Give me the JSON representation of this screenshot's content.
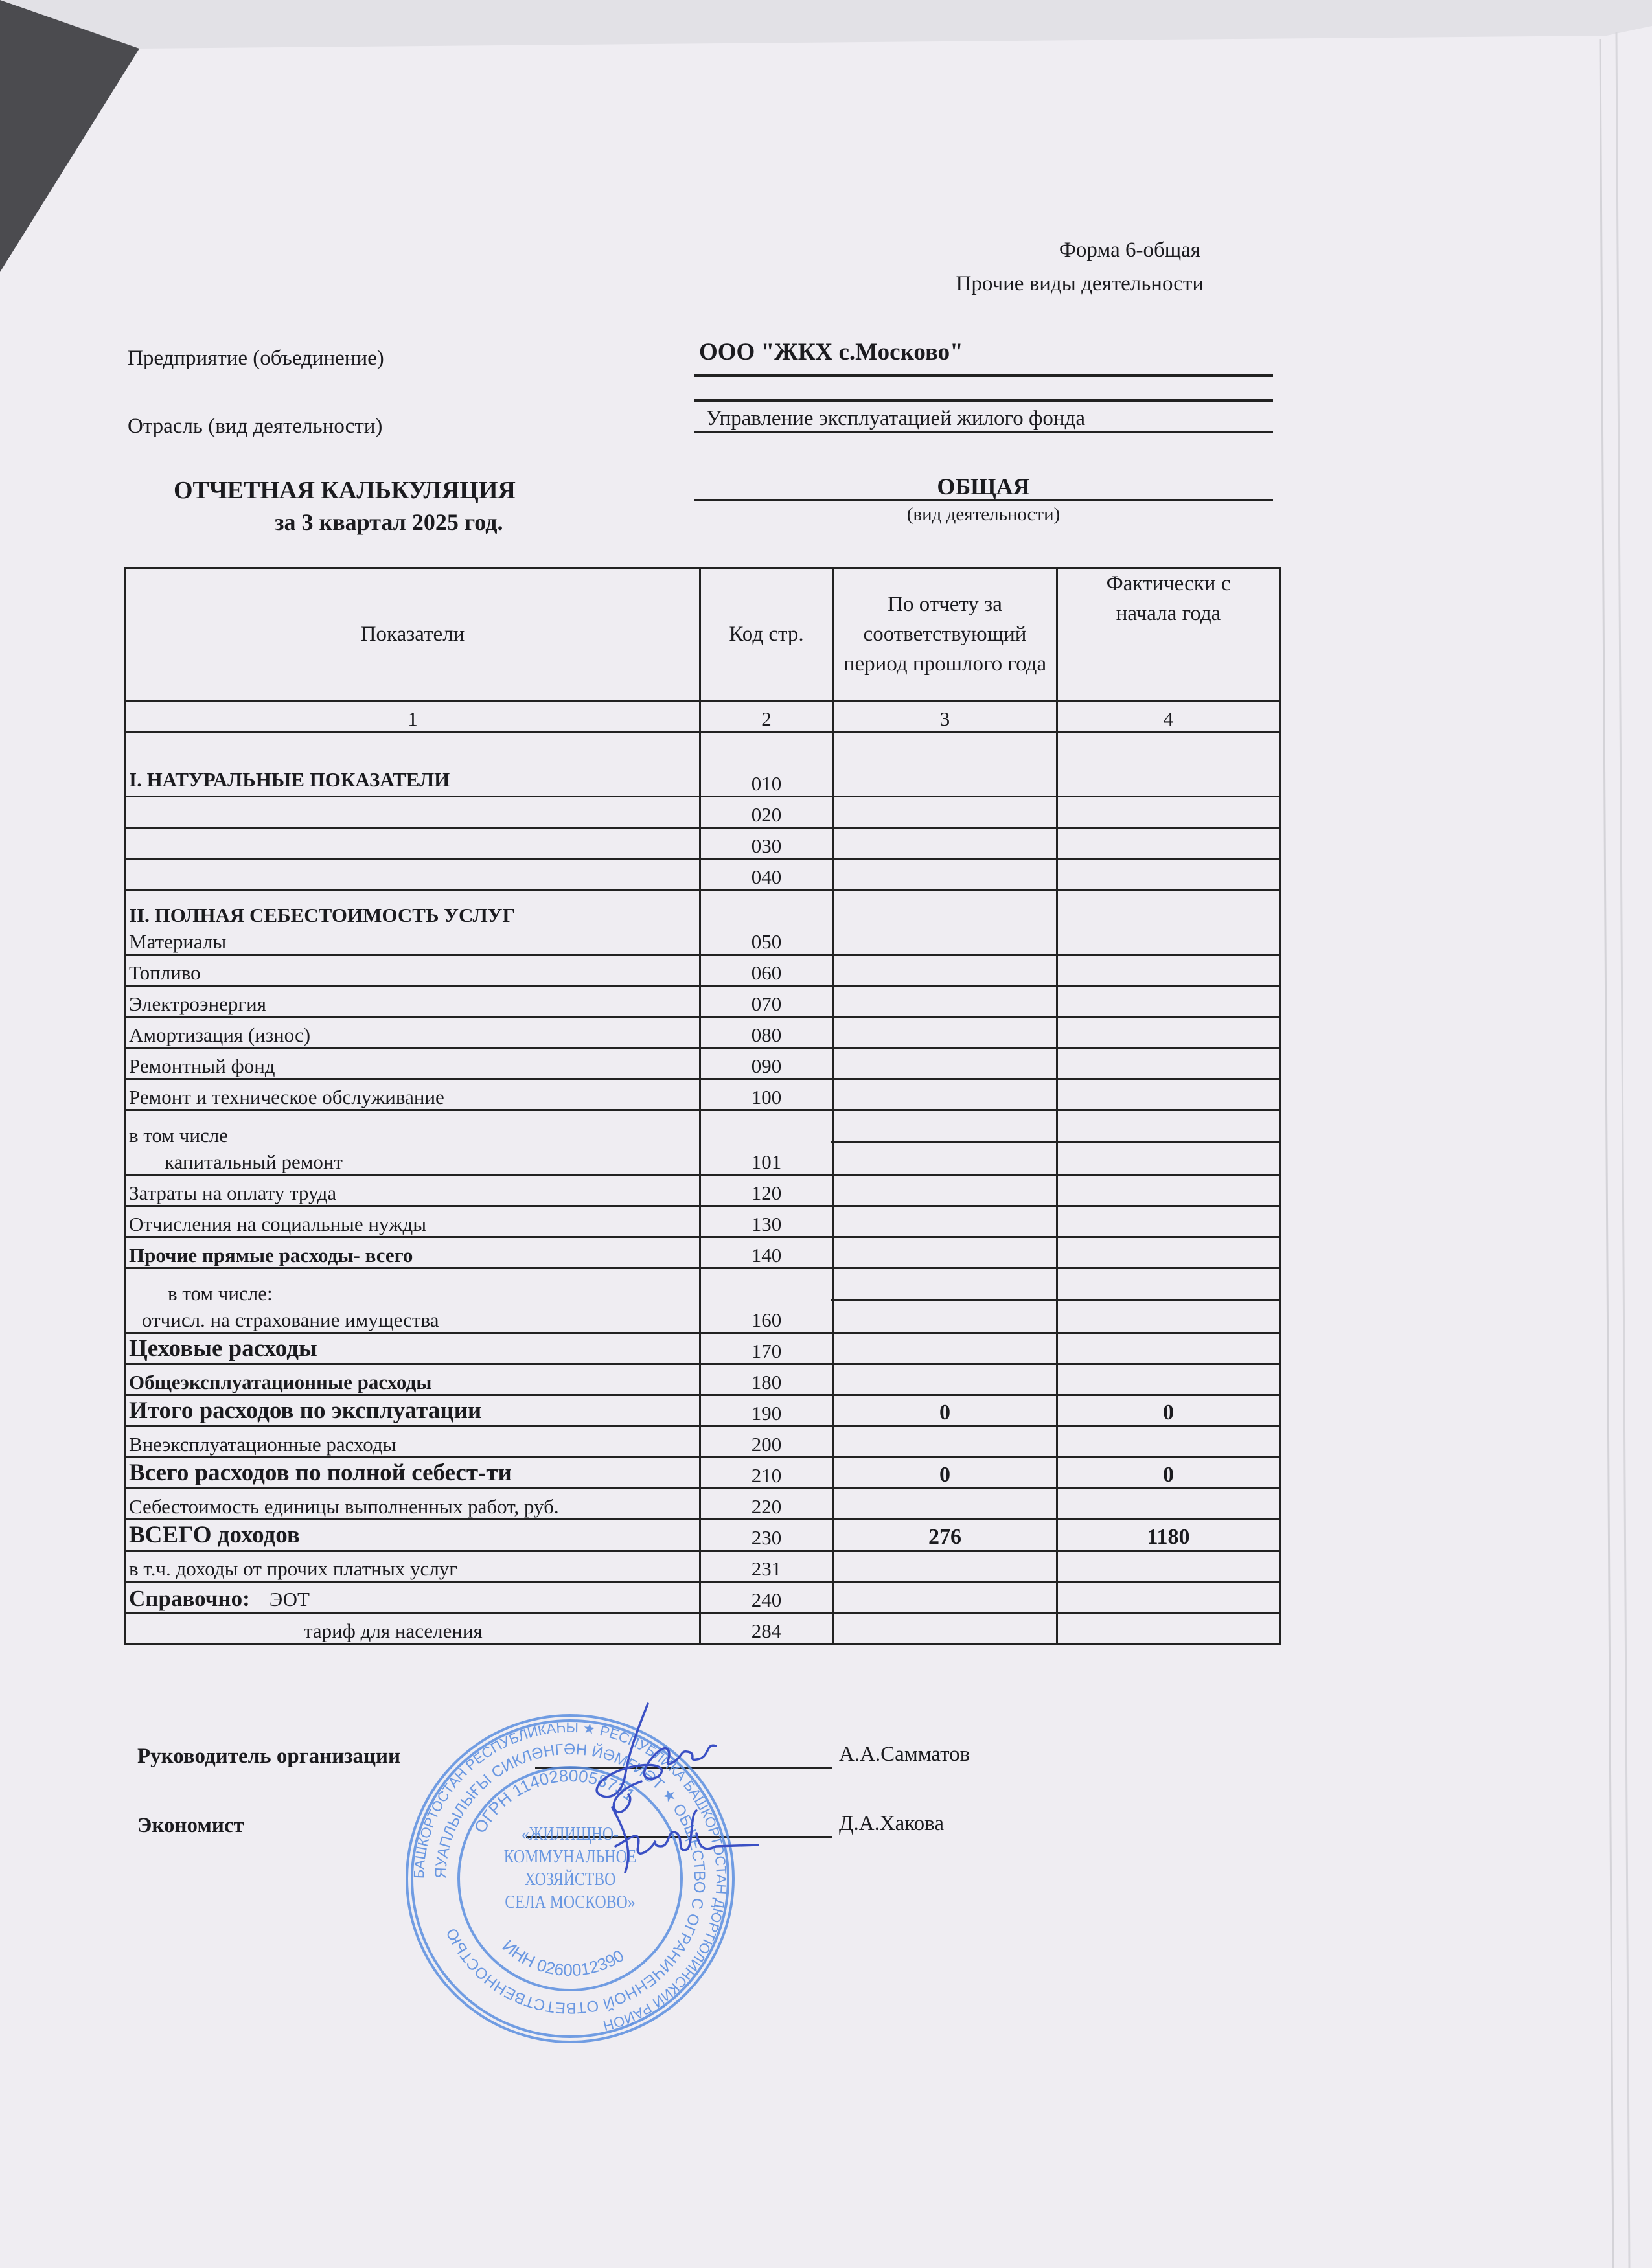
{
  "header": {
    "form": "Форма 6-общая",
    "activity_type": "Прочие виды деятельности",
    "enterprise_label": "Предприятие (объединение)",
    "enterprise_value": "ООО \"ЖКХ с.Москово\"",
    "industry_label": "Отрасль (вид деятельности)",
    "industry_value": "Управление эксплуатацией жилого фонда",
    "title": "ОТЧЕТНАЯ КАЛЬКУЛЯЦИЯ",
    "period": "за 3 квартал 2025 год.",
    "kind_value": "ОБЩАЯ",
    "kind_caption": "(вид деятельности)"
  },
  "table": {
    "columns": [
      "Показатели",
      "Код стр.",
      "По отчету за соответствующий период прошлого года",
      "Фактически с начала года"
    ],
    "column_numbers": [
      "1",
      "2",
      "3",
      "4"
    ],
    "rows": [
      {
        "label_top": "I. НАТУРАЛЬНЫЕ ПОКАЗАТЕЛИ",
        "label": "",
        "code": "010",
        "prev": "",
        "actual": ""
      },
      {
        "label": "",
        "code": "020",
        "prev": "",
        "actual": ""
      },
      {
        "label": "",
        "code": "030",
        "prev": "",
        "actual": ""
      },
      {
        "label": "",
        "code": "040",
        "prev": "",
        "actual": ""
      },
      {
        "label_top": "II. ПОЛНАЯ СЕБЕСТОИМОСТЬ УСЛУГ",
        "label": "Материалы",
        "code": "050",
        "prev": "",
        "actual": ""
      },
      {
        "label": "Топливо",
        "code": "060",
        "prev": "",
        "actual": ""
      },
      {
        "label": "Электроэнергия",
        "code": "070",
        "prev": "",
        "actual": ""
      },
      {
        "label": "Амортизация (износ)",
        "code": "080",
        "prev": "",
        "actual": ""
      },
      {
        "label": "Ремонтный фонд",
        "code": "090",
        "prev": "",
        "actual": ""
      },
      {
        "label": "Ремонт и техническое обслуживание",
        "code": "100",
        "prev": "",
        "actual": ""
      },
      {
        "label_top": "в том числе",
        "label": "капитальный ремонт",
        "code": "101",
        "prev": "",
        "actual": ""
      },
      {
        "label": "Затраты на оплату труда",
        "code": "120",
        "prev": "",
        "actual": ""
      },
      {
        "label": "Отчисления на социальные нужды",
        "code": "130",
        "prev": "",
        "actual": ""
      },
      {
        "label": "Прочие прямые расходы- всего",
        "code": "140",
        "prev": "",
        "actual": ""
      },
      {
        "label_top": "в том числе:",
        "label": "отчисл. на страхование имущества",
        "code": "160",
        "prev": "",
        "actual": ""
      },
      {
        "label": "Цеховые  расходы",
        "code": "170",
        "prev": "",
        "actual": ""
      },
      {
        "label": "Общеэксплуатационные расходы",
        "code": "180",
        "prev": "",
        "actual": ""
      },
      {
        "label": "Итого расходов по эксплуатации",
        "code": "190",
        "prev": "0",
        "actual": "0"
      },
      {
        "label": "Внеэксплуатационные расходы",
        "code": "200",
        "prev": "",
        "actual": ""
      },
      {
        "label": "Всего расходов по полной себест-ти",
        "code": "210",
        "prev": "0",
        "actual": "0"
      },
      {
        "label": "Себестоимость единицы выполненных работ, руб.",
        "code": "220",
        "prev": "",
        "actual": ""
      },
      {
        "label": "ВСЕГО доходов",
        "code": "230",
        "prev": "276",
        "actual": "1180"
      },
      {
        "label": "в т.ч. доходы от прочих платных услуг",
        "code": "231",
        "prev": "",
        "actual": ""
      },
      {
        "label_top": "",
        "label_bold": "Справочно:",
        "label": "ЭОТ",
        "code": "240",
        "prev": "",
        "actual": ""
      },
      {
        "label": "тариф для населения",
        "code": "284",
        "prev": "",
        "actual": ""
      }
    ]
  },
  "signatures": {
    "head_label": "Руководитель организации",
    "head_name": "А.А.Самматов",
    "economist_label": "Экономист",
    "economist_name": "Д.А.Хакова"
  },
  "stamp": {
    "outer_text": "БАШКОРТОСТАН РЕСПУБЛИКАҺЫ ★ РЕСПУБЛИКА БАШКОРТОСТАН ДЮРТЮЛИНСКИЙ РАЙОН",
    "middle_text": "ЯУАПЛЫЛЫҒЫ СИКЛӘНГӘН ЙӘМҒИӘТ ★ ОБЩЕСТВО С ОГРАНИЧЕННОЙ ОТВЕТСТВЕННОСТЬЮ",
    "ogrn": "ОГРН 1140280058731",
    "inn": "ИНН 0260012390",
    "center": [
      "«ЖИЛИЩНО-",
      "КОММУНАЛЬНОЕ",
      "ХОЗЯЙСТВО",
      "СЕЛА МОСКОВО»"
    ],
    "color": "#5b8ee0"
  },
  "colors": {
    "paper": "#efedf2",
    "ink": "#1b1b1f",
    "signature": "#3a4fc4"
  }
}
